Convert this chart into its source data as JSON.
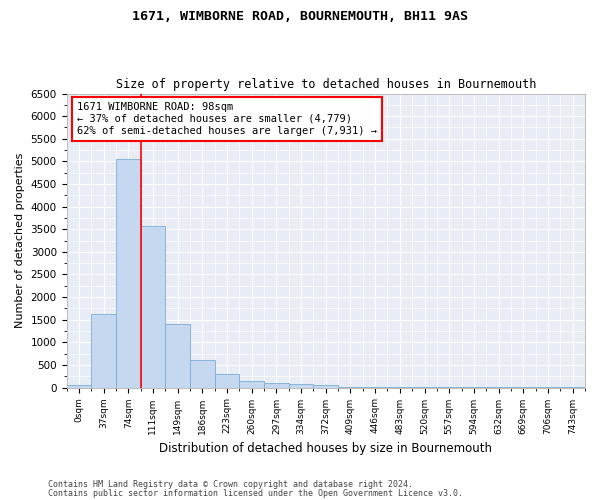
{
  "title": "1671, WIMBORNE ROAD, BOURNEMOUTH, BH11 9AS",
  "subtitle": "Size of property relative to detached houses in Bournemouth",
  "xlabel": "Distribution of detached houses by size in Bournemouth",
  "ylabel": "Number of detached properties",
  "bar_color": "#c5d8f0",
  "bar_edge_color": "#7aadd4",
  "background_color": "#e8edf5",
  "grid_color": "#ffffff",
  "categories": [
    "0sqm",
    "37sqm",
    "74sqm",
    "111sqm",
    "149sqm",
    "186sqm",
    "223sqm",
    "260sqm",
    "297sqm",
    "334sqm",
    "372sqm",
    "409sqm",
    "446sqm",
    "483sqm",
    "520sqm",
    "557sqm",
    "594sqm",
    "632sqm",
    "669sqm",
    "706sqm",
    "743sqm"
  ],
  "values": [
    60,
    1620,
    5060,
    3580,
    1400,
    610,
    290,
    150,
    110,
    80,
    50,
    20,
    10,
    5,
    5,
    3,
    3,
    3,
    3,
    3,
    3
  ],
  "ylim": [
    0,
    6500
  ],
  "yticks": [
    0,
    500,
    1000,
    1500,
    2000,
    2500,
    3000,
    3500,
    4000,
    4500,
    5000,
    5500,
    6000,
    6500
  ],
  "property_line_x": 3.0,
  "annotation_text": "1671 WIMBORNE ROAD: 98sqm\n← 37% of detached houses are smaller (4,779)\n62% of semi-detached houses are larger (7,931) →",
  "footnote1": "Contains HM Land Registry data © Crown copyright and database right 2024.",
  "footnote2": "Contains public sector information licensed under the Open Government Licence v3.0."
}
